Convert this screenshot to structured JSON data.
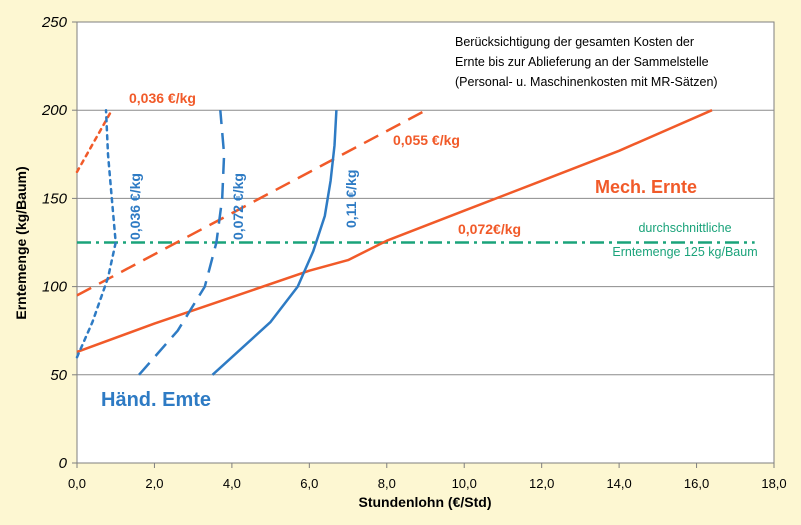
{
  "chart_data": {
    "type": "line",
    "title": "",
    "xlabel": "Stundenlohn (€/Std)",
    "ylabel": "Erntemenge (kg/Baum)",
    "xlim": [
      0,
      18
    ],
    "ylim": [
      0,
      250
    ],
    "x_ticks": [
      "0,0",
      "2,0",
      "4,0",
      "6,0",
      "8,0",
      "10,0",
      "12,0",
      "14,0",
      "16,0",
      "18,0"
    ],
    "y_ticks": [
      "0",
      "50",
      "100",
      "150",
      "200",
      "250"
    ],
    "grid": "horizontal",
    "legend": "none",
    "colors": {
      "background": "#fdf7d2",
      "plot_background": "#ffffff",
      "mech": "#f15a29",
      "hand": "#2e7bc4",
      "reference": "#1aa37a"
    },
    "series": [
      {
        "name": "0,036 €/kg",
        "label_text": "0,036 €/kg",
        "group": "mech",
        "dash": "dotted",
        "x": [
          0.0,
          0.9
        ],
        "y": [
          165.0,
          200.0
        ]
      },
      {
        "name": "0,055 €/kg",
        "label_text": "0,055 €/kg",
        "group": "mech",
        "dash": "dashed",
        "x": [
          0.0,
          9.1
        ],
        "y": [
          95.0,
          201.0
        ]
      },
      {
        "name": "0,072€/kg",
        "label_text": "0,072€/kg",
        "group": "mech",
        "dash": "solid",
        "x": [
          0.0,
          2.0,
          4.0,
          6.0,
          7.0,
          8.0,
          10.0,
          12.0,
          14.0,
          16.4
        ],
        "y": [
          63.0,
          79.0,
          94.0,
          109.0,
          115.0,
          126.0,
          143.0,
          160.0,
          177.0,
          200.0
        ]
      },
      {
        "name": "0,036 €/kg",
        "label_text": "0,036 €/kg",
        "group": "hand",
        "dash": "dotted",
        "x": [
          0.0,
          0.4,
          0.8,
          1.0,
          0.9,
          0.8,
          0.75
        ],
        "y": [
          60.0,
          80.0,
          105.0,
          125.0,
          150.0,
          175.0,
          200.0
        ]
      },
      {
        "name": "0,072 €/kg",
        "label_text": "0,072 €/kg",
        "group": "hand",
        "dash": "dashed",
        "x": [
          1.6,
          2.6,
          3.3,
          3.6,
          3.75,
          3.8,
          3.7
        ],
        "y": [
          50.0,
          75.0,
          100.0,
          125.0,
          150.0,
          175.0,
          200.0
        ]
      },
      {
        "name": "0,11 €/kg",
        "label_text": "0,11 €/kg",
        "group": "hand",
        "dash": "solid",
        "x": [
          3.5,
          4.0,
          5.0,
          5.7,
          6.1,
          6.4,
          6.55,
          6.65,
          6.7
        ],
        "y": [
          50.0,
          60.0,
          80.0,
          100.0,
          120.0,
          140.0,
          160.0,
          180.0,
          200.0
        ]
      }
    ],
    "reference_line": {
      "y": 125,
      "x_start": 0.0,
      "x_end": 17.5,
      "label_line1": "durchschnittliche",
      "label_line2": "Erntemenge 125 kg/Baum"
    },
    "annotations": {
      "mech_group": "Mech. Ernte",
      "hand_group": "Händ. Emte",
      "note_lines": [
        "Berücksichtigung der gesamten Kosten der",
        "Ernte bis zur Ablieferung an der Sammelstelle",
        "(Personal- u. Maschinenkosten mit MR-Sätzen)"
      ]
    }
  }
}
